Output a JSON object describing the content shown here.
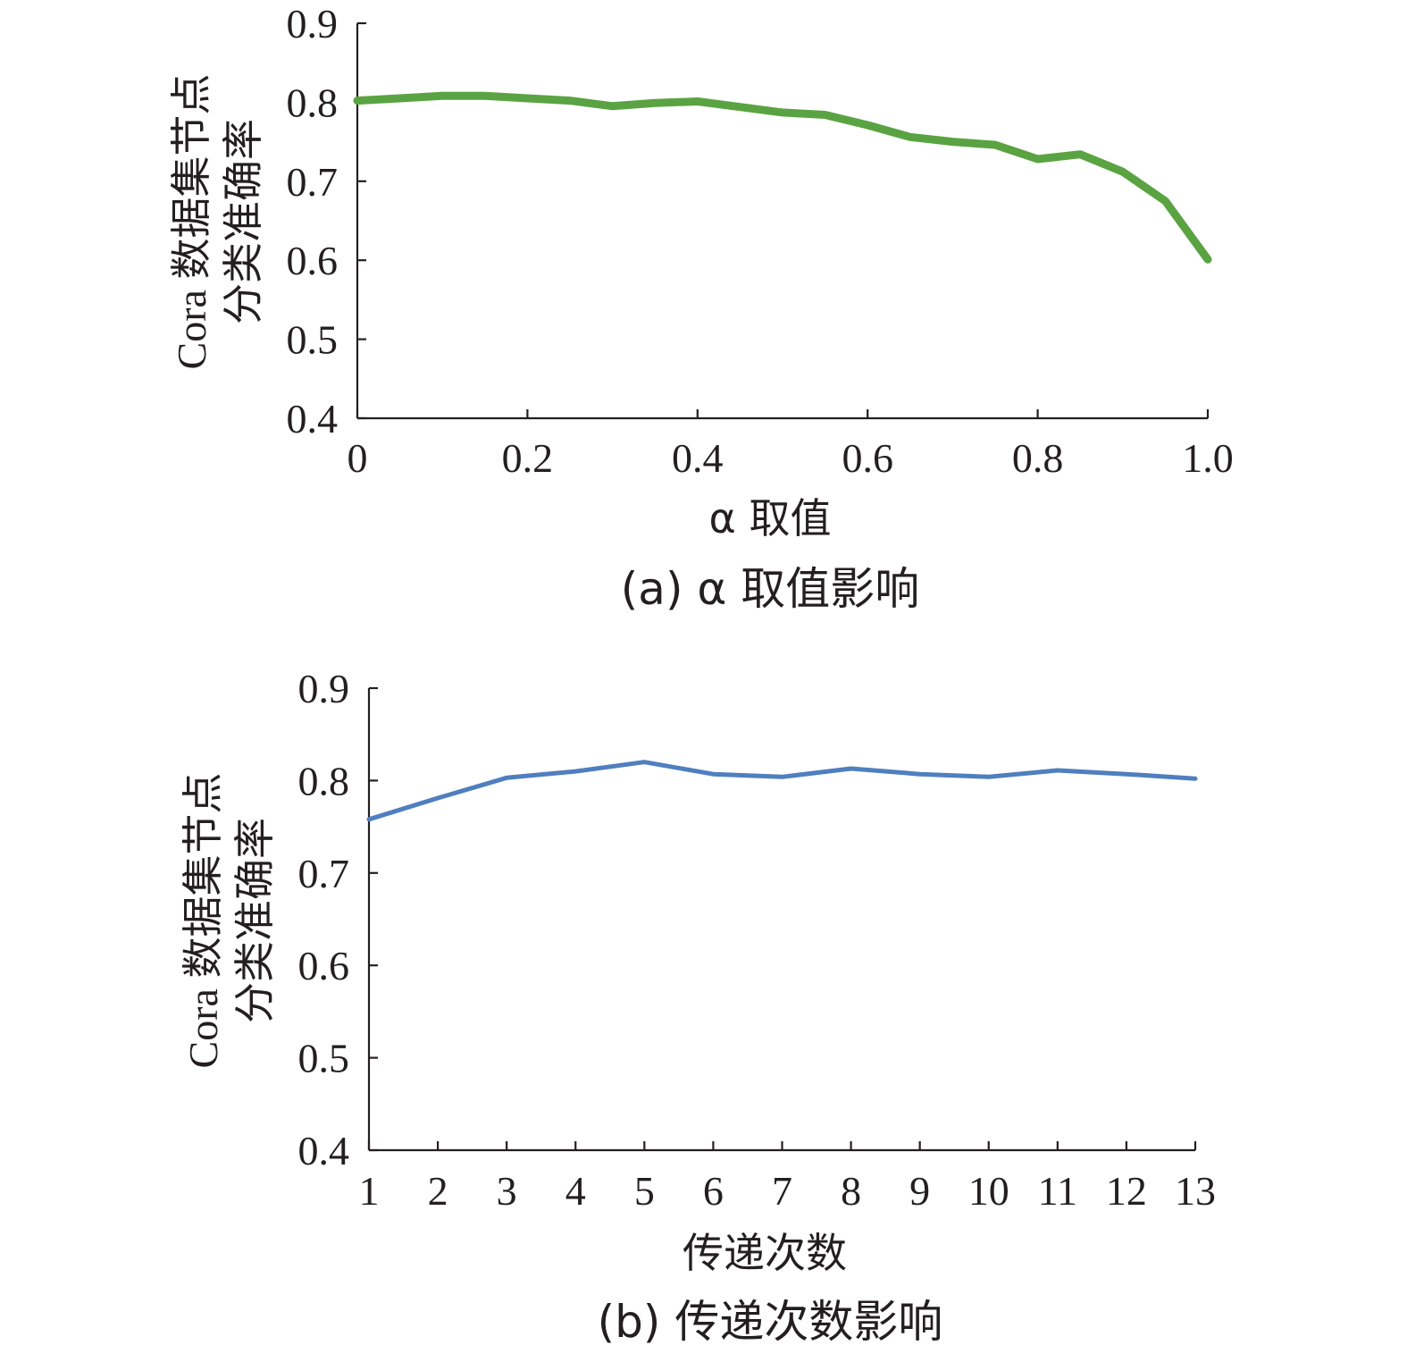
{
  "chart_data": [
    {
      "type": "line",
      "caption": "(a) α 取值影响",
      "ylabel_lines": [
        "Cora 数据集节点",
        "分类准确率"
      ],
      "xlabel": "α 取值",
      "xlim": [
        0,
        1.0
      ],
      "ylim": [
        0.4,
        0.9
      ],
      "x_ticks": [
        "0",
        "0.2",
        "0.4",
        "0.6",
        "0.8",
        "1.0"
      ],
      "y_ticks": [
        "0.4",
        "0.5",
        "0.6",
        "0.7",
        "0.8",
        "0.9"
      ],
      "grid": false,
      "color": "#5aa342",
      "series": [
        {
          "x": [
            0,
            0.05,
            0.1,
            0.15,
            0.2,
            0.25,
            0.3,
            0.35,
            0.4,
            0.45,
            0.5,
            0.55,
            0.6,
            0.65,
            0.7,
            0.75,
            0.8,
            0.85,
            0.9,
            0.95,
            1.0
          ],
          "y": [
            0.802,
            0.805,
            0.808,
            0.808,
            0.805,
            0.802,
            0.795,
            0.799,
            0.801,
            0.794,
            0.787,
            0.784,
            0.771,
            0.756,
            0.75,
            0.746,
            0.728,
            0.734,
            0.712,
            0.675,
            0.601
          ]
        }
      ]
    },
    {
      "type": "line",
      "caption": "(b) 传递次数影响",
      "ylabel_lines": [
        "Cora 数据集节点",
        "分类准确率"
      ],
      "xlabel": "传递次数",
      "xlim": [
        1,
        13
      ],
      "ylim": [
        0.4,
        0.9
      ],
      "x_ticks": [
        "1",
        "2",
        "3",
        "4",
        "5",
        "6",
        "7",
        "8",
        "9",
        "10",
        "11",
        "12",
        "13"
      ],
      "y_ticks": [
        "0.4",
        "0.5",
        "0.6",
        "0.7",
        "0.8",
        "0.9"
      ],
      "grid": false,
      "color": "#4f7fbf",
      "series": [
        {
          "x": [
            1,
            2,
            3,
            4,
            5,
            6,
            7,
            8,
            9,
            10,
            11,
            12,
            13
          ],
          "y": [
            0.758,
            0.781,
            0.803,
            0.81,
            0.82,
            0.807,
            0.804,
            0.813,
            0.807,
            0.804,
            0.811,
            0.807,
            0.802
          ]
        }
      ]
    }
  ]
}
